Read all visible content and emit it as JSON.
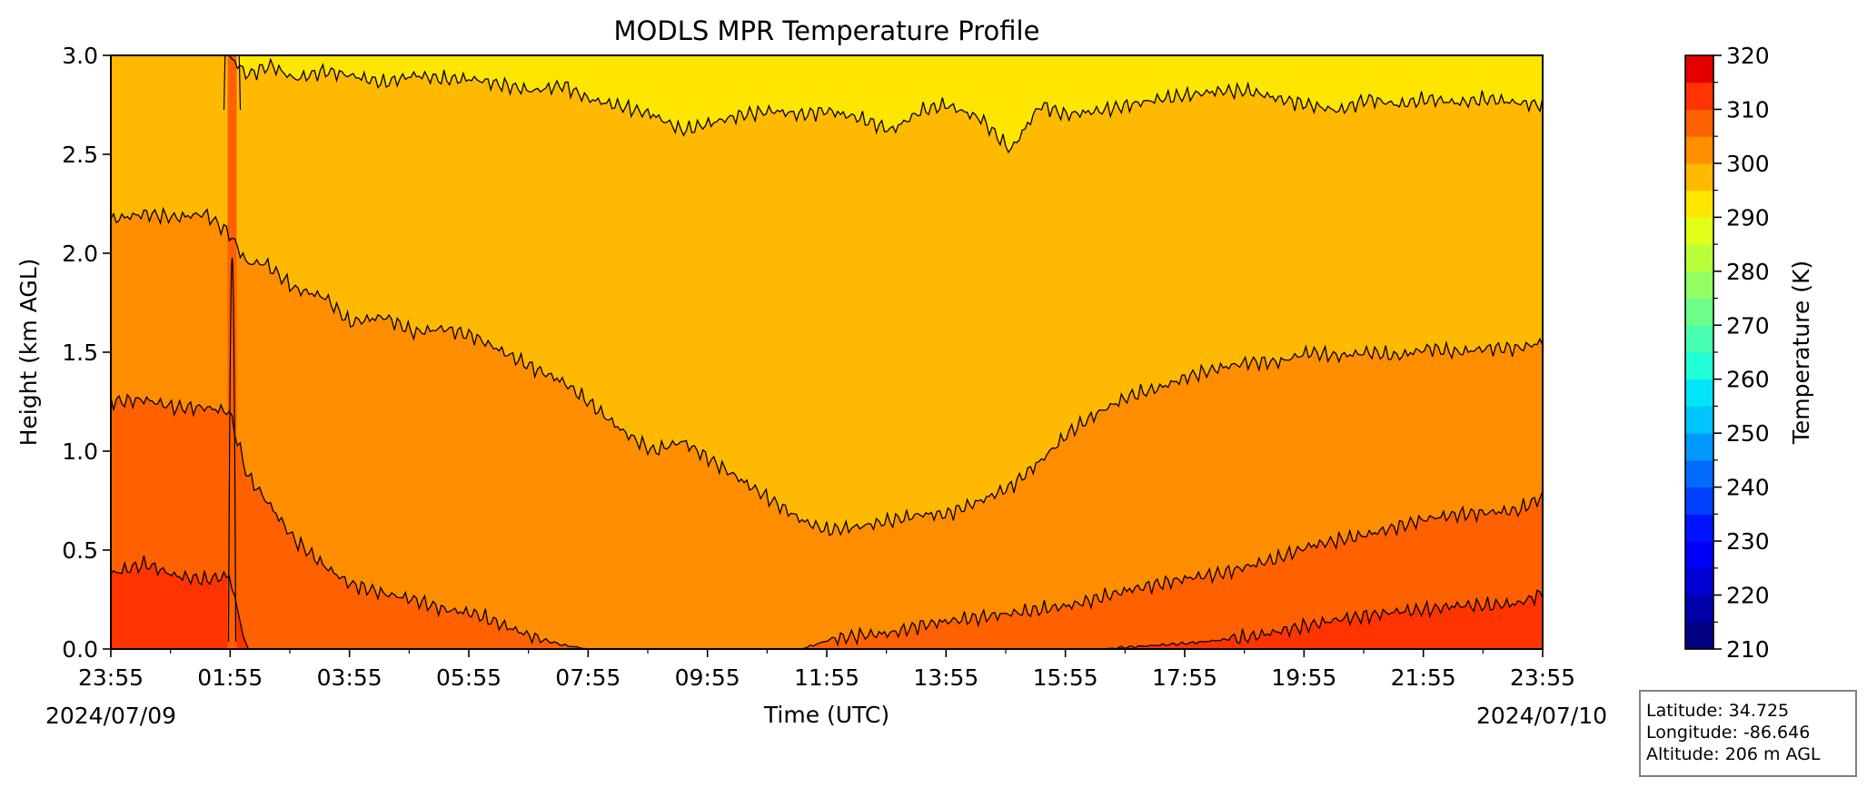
{
  "chart_data": {
    "type": "heatmap",
    "title": "MODLS MPR Temperature Profile",
    "xlabel": "Time (UTC)",
    "ylabel": "Height (km AGL)",
    "x_tick_labels": [
      "23:55",
      "01:55",
      "03:55",
      "05:55",
      "07:55",
      "09:55",
      "11:55",
      "13:55",
      "15:55",
      "17:55",
      "19:55",
      "21:55",
      "23:55"
    ],
    "x_hours": [
      -0.0833,
      1.9167,
      3.9167,
      5.9167,
      7.9167,
      9.9167,
      11.9167,
      13.9167,
      15.9167,
      17.9167,
      19.9167,
      21.9167,
      23.9167
    ],
    "x_date_start": "2024/07/09",
    "x_date_end": "2024/07/10",
    "ylim": [
      0.0,
      3.0
    ],
    "y_ticks": [
      0.0,
      0.5,
      1.0,
      1.5,
      2.0,
      2.5,
      3.0
    ],
    "y_tick_labels": [
      "0.0",
      "0.5",
      "1.0",
      "1.5",
      "2.0",
      "2.5",
      "3.0"
    ],
    "colorbar": {
      "label": "Temperature (K)",
      "range": [
        210,
        320
      ],
      "ticks": [
        210,
        220,
        230,
        240,
        250,
        260,
        270,
        280,
        290,
        300,
        310,
        320
      ],
      "levels": [
        210,
        215,
        220,
        225,
        230,
        235,
        240,
        245,
        250,
        255,
        260,
        265,
        270,
        275,
        280,
        285,
        290,
        295,
        300,
        305,
        310,
        315,
        320
      ],
      "colors": [
        "#000080",
        "#0000a8",
        "#0000d1",
        "#0000fa",
        "#0014ff",
        "#0040ff",
        "#006cff",
        "#0098ff",
        "#00c4ff",
        "#00e5f7",
        "#21ffd6",
        "#47ffb0",
        "#6dff8a",
        "#94ff63",
        "#bbff3c",
        "#e1ff16",
        "#ffe600",
        "#ffb900",
        "#ff8d00",
        "#ff6000",
        "#ff3400",
        "#e50000",
        "#800000"
      ]
    },
    "temperature_bands_K": [
      {
        "range": [
          300,
          305
        ],
        "color": "#ff3400"
      },
      {
        "range": [
          295,
          300
        ],
        "color": "#ff6000"
      },
      {
        "range": [
          290,
          295
        ],
        "color": "#ff8d00"
      },
      {
        "range": [
          285,
          290
        ],
        "color": "#ffb900"
      },
      {
        "range": [
          280,
          285
        ],
        "color": "#ffe600"
      }
    ],
    "contours": [
      {
        "level_K": 300,
        "x_hours": [
          -0.0833,
          0.5,
          1.0,
          1.5,
          1.9,
          2.2,
          2.6,
          3.2,
          3.9167,
          4.5,
          5.5,
          6.5,
          7.5,
          8.5,
          9.5,
          10.5,
          11.0,
          11.5,
          12.0,
          13.0,
          13.9167,
          14.5,
          15.0,
          15.5,
          16.0,
          16.5,
          17.0,
          17.5,
          18.0,
          19.0,
          19.5,
          20.0,
          20.5,
          21.0,
          21.5,
          22.0,
          22.5,
          23.0,
          23.5,
          23.9167
        ],
        "y_km": [
          0.38,
          0.43,
          0.37,
          0.35,
          0.37,
          0.0,
          0.0,
          0.0,
          0.0,
          0.0,
          0.0,
          0.0,
          0.0,
          0.0,
          0.0,
          0.0,
          0.0,
          0.0,
          0.0,
          0.0,
          0.0,
          0.0,
          0.0,
          0.0,
          0.0,
          0.0,
          0.01,
          0.02,
          0.03,
          0.06,
          0.09,
          0.12,
          0.15,
          0.17,
          0.19,
          0.2,
          0.22,
          0.22,
          0.23,
          0.28
        ]
      },
      {
        "level_K": 295,
        "x_hours": [
          -0.0833,
          0.5,
          1.0,
          1.5,
          1.9,
          2.2,
          2.6,
          3.0,
          3.5,
          3.9167,
          4.5,
          5.0,
          5.5,
          6.0,
          6.5,
          7.0,
          7.5,
          7.9167,
          8.5,
          9.5,
          10.5,
          11.5,
          12.0,
          12.5,
          13.0,
          13.5,
          13.9167,
          14.5,
          15.0,
          15.5,
          16.0,
          16.5,
          17.0,
          17.5,
          18.0,
          18.5,
          19.0,
          19.5,
          20.0,
          20.5,
          21.0,
          21.5,
          22.0,
          22.5,
          23.0,
          23.5,
          23.9167
        ],
        "y_km": [
          1.25,
          1.26,
          1.22,
          1.22,
          1.2,
          0.88,
          0.72,
          0.55,
          0.42,
          0.33,
          0.28,
          0.25,
          0.2,
          0.18,
          0.12,
          0.06,
          0.02,
          0.0,
          0.0,
          0.0,
          0.0,
          0.0,
          0.05,
          0.07,
          0.08,
          0.12,
          0.14,
          0.16,
          0.18,
          0.2,
          0.22,
          0.26,
          0.3,
          0.33,
          0.36,
          0.38,
          0.42,
          0.46,
          0.52,
          0.55,
          0.58,
          0.62,
          0.66,
          0.68,
          0.69,
          0.7,
          0.77
        ]
      },
      {
        "level_K": 290,
        "x_hours": [
          -0.0833,
          0.5,
          1.0,
          1.5,
          1.9,
          2.2,
          2.5,
          3.0,
          3.5,
          3.9167,
          4.5,
          5.0,
          5.5,
          6.0,
          6.5,
          7.0,
          7.5,
          7.9167,
          8.5,
          9.0,
          9.5,
          10.0,
          10.5,
          11.0,
          11.5,
          11.9167,
          12.5,
          13.0,
          13.5,
          13.9167,
          14.5,
          15.0,
          15.5,
          16.0,
          16.5,
          17.0,
          17.5,
          18.0,
          18.5,
          19.0,
          19.5,
          20.0,
          20.5,
          21.0,
          21.5,
          22.0,
          22.5,
          23.0,
          23.5,
          23.9167
        ],
        "y_km": [
          2.17,
          2.2,
          2.18,
          2.2,
          2.1,
          1.95,
          1.95,
          1.82,
          1.78,
          1.65,
          1.68,
          1.6,
          1.62,
          1.58,
          1.5,
          1.42,
          1.35,
          1.25,
          1.1,
          1.0,
          1.05,
          0.95,
          0.85,
          0.75,
          0.65,
          0.6,
          0.62,
          0.65,
          0.68,
          0.68,
          0.75,
          0.82,
          0.95,
          1.1,
          1.2,
          1.28,
          1.32,
          1.38,
          1.42,
          1.45,
          1.45,
          1.5,
          1.48,
          1.5,
          1.48,
          1.52,
          1.5,
          1.52,
          1.52,
          1.55
        ]
      },
      {
        "level_K": 285,
        "x_hours": [
          -0.0833,
          0.5,
          1.0,
          1.5,
          1.9,
          2.2,
          2.6,
          3.0,
          3.5,
          3.9167,
          4.5,
          5.0,
          5.5,
          6.0,
          6.5,
          7.0,
          7.5,
          7.9167,
          8.5,
          9.0,
          9.5,
          10.0,
          10.5,
          11.0,
          11.5,
          11.9167,
          12.5,
          13.0,
          13.5,
          13.9167,
          14.5,
          15.0,
          15.5,
          15.9167,
          16.5,
          17.0,
          17.5,
          18.0,
          18.5,
          19.0,
          19.5,
          20.0,
          20.5,
          21.0,
          21.5,
          22.0,
          22.5,
          23.0,
          23.5,
          23.9167
        ],
        "y_km": [
          3.0,
          3.0,
          3.0,
          3.0,
          3.0,
          2.9,
          2.95,
          2.88,
          2.92,
          2.9,
          2.86,
          2.9,
          2.88,
          2.88,
          2.85,
          2.82,
          2.85,
          2.78,
          2.74,
          2.7,
          2.62,
          2.66,
          2.7,
          2.72,
          2.7,
          2.72,
          2.68,
          2.62,
          2.72,
          2.75,
          2.68,
          2.52,
          2.75,
          2.7,
          2.72,
          2.75,
          2.78,
          2.8,
          2.82,
          2.82,
          2.78,
          2.75,
          2.72,
          2.78,
          2.75,
          2.78,
          2.76,
          2.78,
          2.76,
          2.75
        ]
      }
    ],
    "vertical_anomaly_hour": 1.95
  },
  "info_box": {
    "latitude": "Latitude: 34.725",
    "longitude": "Longitude: -86.646",
    "altitude": "Altitude: 206 m AGL"
  }
}
